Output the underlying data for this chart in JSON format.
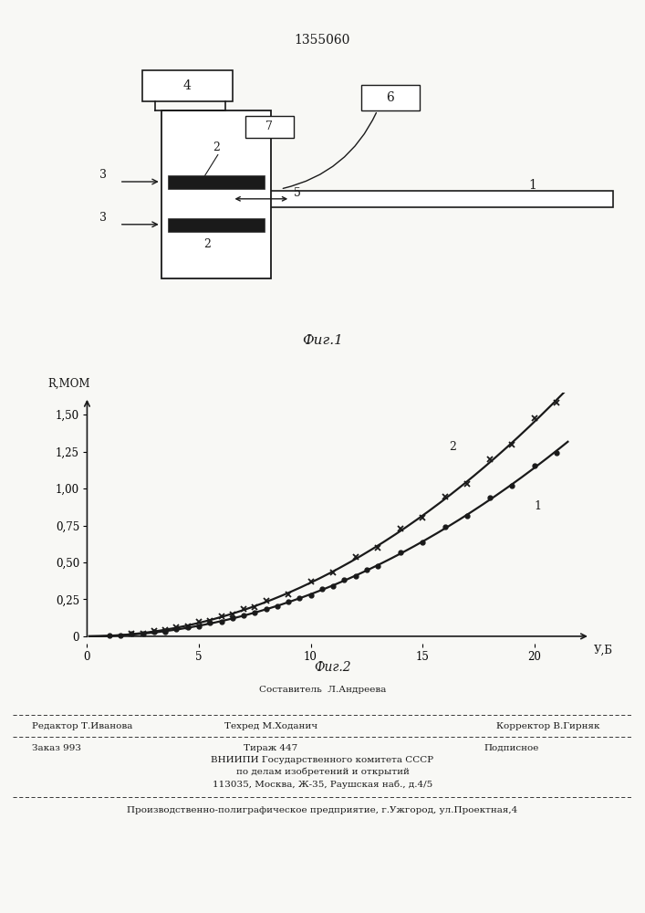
{
  "patent_number": "1355060",
  "fig1_caption": "Фиг.1",
  "fig2_caption": "Фиг.2",
  "ylabel": "R,МОМ",
  "xlabel": "У,Б",
  "ytick_labels": [
    "0",
    "0,25",
    "0,50",
    "0,75",
    "1,00",
    "1,25",
    "1,50"
  ],
  "ytick_vals": [
    0,
    0.25,
    0.5,
    0.75,
    1.0,
    1.25,
    1.5
  ],
  "xtick_vals": [
    0,
    5,
    10,
    15,
    20
  ],
  "xlim": [
    0,
    22.5
  ],
  "ylim": [
    -0.05,
    1.65
  ],
  "curve1_label": "1",
  "curve2_label": "2",
  "footer_composer": "Составитель  Л.Андреева",
  "footer_editor": "Редактор Т.Иванова",
  "footer_tech": "Техред М.Ходанич",
  "footer_corrector": "Корректор В.Гирняк",
  "footer_order": "Заказ 993",
  "footer_print": "Тираж 447",
  "footer_subscription": "Подписное",
  "footer_vniipn": "ВНИИПИ Государственного комитета СССР",
  "footer_affairs": "по делам изобретений и открытий",
  "footer_address": "113035, Москва, Ж-35, Раушская наб., д.4/5",
  "footer_factory": "Производственно-полиграфическое предприятие, г.Ужгород, ул.Проектная,4",
  "bg_color": "#f8f8f5",
  "line_color": "#1a1a1a"
}
